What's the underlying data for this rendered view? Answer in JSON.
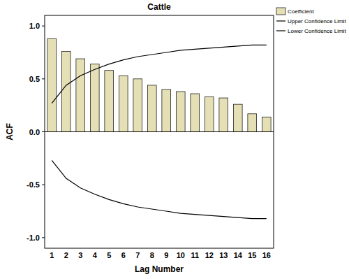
{
  "chart_data": {
    "type": "bar",
    "title": "Cattle",
    "x_label": "Lag Number",
    "y_label": "ACF",
    "categories": [
      1,
      2,
      3,
      4,
      5,
      6,
      7,
      8,
      9,
      10,
      11,
      12,
      13,
      14,
      15,
      16
    ],
    "series": [
      {
        "name": "Coefficient",
        "type": "bar",
        "color": "#e4dfb5",
        "values": [
          0.88,
          0.76,
          0.69,
          0.64,
          0.58,
          0.53,
          0.5,
          0.44,
          0.4,
          0.38,
          0.36,
          0.33,
          0.32,
          0.26,
          0.17,
          0.14
        ]
      },
      {
        "name": "Upper Confidence Limit",
        "type": "line",
        "color": "#000000",
        "values": [
          0.27,
          0.44,
          0.53,
          0.59,
          0.64,
          0.68,
          0.71,
          0.73,
          0.75,
          0.77,
          0.78,
          0.79,
          0.8,
          0.81,
          0.82,
          0.82
        ]
      },
      {
        "name": "Lower Confidence Limit",
        "type": "line",
        "color": "#000000",
        "values": [
          -0.27,
          -0.44,
          -0.53,
          -0.59,
          -0.64,
          -0.68,
          -0.71,
          -0.73,
          -0.75,
          -0.77,
          -0.78,
          -0.79,
          -0.8,
          -0.81,
          -0.82,
          -0.82
        ]
      }
    ],
    "ylim": [
      -1.1,
      1.1
    ],
    "yticks": [
      {
        "value": -1.0,
        "label": "-1.0"
      },
      {
        "value": -0.5,
        "label": "-0.5"
      },
      {
        "value": 0,
        "label": "0.0"
      },
      {
        "value": 0.5,
        "label": "0.5"
      },
      {
        "value": 1.0,
        "label": "1.0"
      }
    ],
    "legend": "right",
    "grid": false
  }
}
